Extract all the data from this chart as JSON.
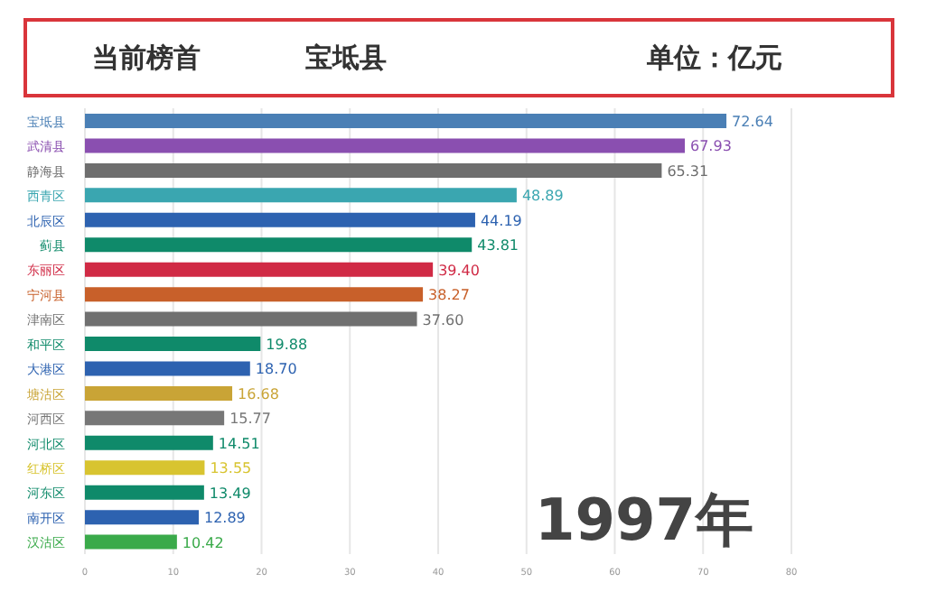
{
  "chart_data": {
    "type": "bar",
    "orientation": "horizontal",
    "title": "当前榜首",
    "subtitle": "宝坻县",
    "annotations": [
      "单位：亿元",
      "1997年"
    ],
    "categories": [
      "宝坻县",
      "武清县",
      "静海县",
      "西青区",
      "北辰区",
      "蓟县",
      "东丽区",
      "宁河县",
      "津南区",
      "和平区",
      "大港区",
      "塘沽区",
      "河西区",
      "河北区",
      "红桥区",
      "河东区",
      "南开区",
      "汉沽区"
    ],
    "values": [
      72.64,
      67.93,
      65.31,
      48.89,
      44.19,
      43.81,
      39.4,
      38.27,
      37.6,
      19.88,
      18.7,
      16.68,
      15.77,
      14.51,
      13.55,
      13.49,
      12.89,
      10.42
    ],
    "value_labels": [
      "72.64",
      "67.93",
      "65.31",
      "48.89",
      "44.19",
      "43.81",
      "39.40",
      "38.27",
      "37.60",
      "19.88",
      "18.70",
      "16.68",
      "15.77",
      "14.51",
      "13.55",
      "13.49",
      "12.89",
      "10.42"
    ],
    "colors": [
      "#4a7fb5",
      "#8a4fb0",
      "#6e6e6e",
      "#3aa6b0",
      "#2d62b0",
      "#0f8a6a",
      "#d02a45",
      "#c8602a",
      "#707070",
      "#0f8a6a",
      "#2d62b0",
      "#c9a436",
      "#777777",
      "#0f8a6a",
      "#d8c430",
      "#0f8a6a",
      "#2d62b0",
      "#3aaa4a"
    ],
    "xlim": [
      0,
      80
    ],
    "xticks": [
      0,
      10,
      20,
      30,
      40,
      50,
      60,
      70,
      80
    ],
    "grid": "x"
  }
}
